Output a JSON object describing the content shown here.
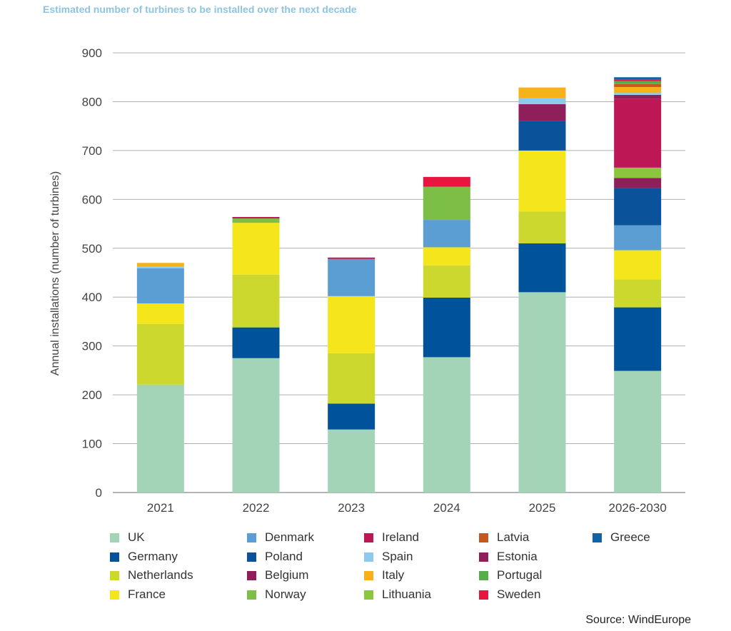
{
  "chart_data": {
    "type": "bar",
    "stacked": true,
    "title": "Estimated number of turbines to be installed over the next decade",
    "ylabel": "Annual installations (number of turbines)",
    "xlabel": "",
    "ylim": [
      0,
      900
    ],
    "yticks": [
      0,
      100,
      200,
      300,
      400,
      500,
      600,
      700,
      800,
      900
    ],
    "categories": [
      "2021",
      "2022",
      "2023",
      "2024",
      "2025",
      "2026-2030"
    ],
    "grid": true,
    "legend_position": "bottom",
    "series": [
      {
        "name": "UK",
        "color": "#a3d4b7",
        "values": [
          221,
          275,
          129,
          277,
          410,
          249
        ]
      },
      {
        "name": "Germany",
        "color": "#00539b",
        "values": [
          0,
          63,
          53,
          122,
          100,
          130
        ]
      },
      {
        "name": "Netherlands",
        "color": "#cdd82e",
        "values": [
          124,
          108,
          103,
          66,
          65,
          57
        ]
      },
      {
        "name": "France",
        "color": "#f4e61a",
        "values": [
          42,
          106,
          117,
          37,
          125,
          60
        ]
      },
      {
        "name": "Denmark",
        "color": "#5b9ed4",
        "values": [
          72,
          0,
          76,
          56,
          0,
          51
        ]
      },
      {
        "name": "Poland",
        "color": "#0a539b",
        "values": [
          0,
          0,
          0,
          0,
          61,
          76
        ]
      },
      {
        "name": "Belgium",
        "color": "#8e1f5b",
        "values": [
          0,
          0,
          0,
          0,
          0,
          21
        ]
      },
      {
        "name": "Norway",
        "color": "#7dbe47",
        "values": [
          0,
          9,
          0,
          68,
          0,
          0
        ]
      },
      {
        "name": "Lithuania",
        "color": "#8cc63f",
        "values": [
          0,
          0,
          0,
          0,
          0,
          21
        ]
      },
      {
        "name": "Ireland",
        "color": "#be1755",
        "values": [
          0,
          3,
          3,
          0,
          0,
          141
        ]
      },
      {
        "name": "Estonia",
        "color": "#8e1f5b",
        "values": [
          0,
          0,
          0,
          0,
          34,
          8
        ]
      },
      {
        "name": "Spain",
        "color": "#8ec9ee",
        "values": [
          3,
          0,
          0,
          0,
          12,
          4
        ]
      },
      {
        "name": "Italy",
        "color": "#f5b21b",
        "values": [
          8,
          0,
          0,
          0,
          22,
          12
        ]
      },
      {
        "name": "Latvia",
        "color": "#c5591b",
        "values": [
          0,
          0,
          0,
          0,
          0,
          6
        ]
      },
      {
        "name": "Portugal",
        "color": "#58ad4b",
        "values": [
          0,
          0,
          0,
          0,
          0,
          6
        ]
      },
      {
        "name": "Sweden",
        "color": "#e8153f",
        "values": [
          0,
          0,
          0,
          20,
          0,
          3
        ]
      },
      {
        "name": "Greece",
        "color": "#0f63a6",
        "values": [
          0,
          0,
          0,
          0,
          0,
          5
        ]
      }
    ],
    "legend_order": [
      "UK",
      "Denmark",
      "Ireland",
      "Latvia",
      "Greece",
      "Germany",
      "Poland",
      "Spain",
      "Estonia",
      "Netherlands",
      "Belgium",
      "Italy",
      "Portugal",
      "France",
      "Norway",
      "Lithuania",
      "Sweden"
    ],
    "source": "Source: WindEurope"
  }
}
